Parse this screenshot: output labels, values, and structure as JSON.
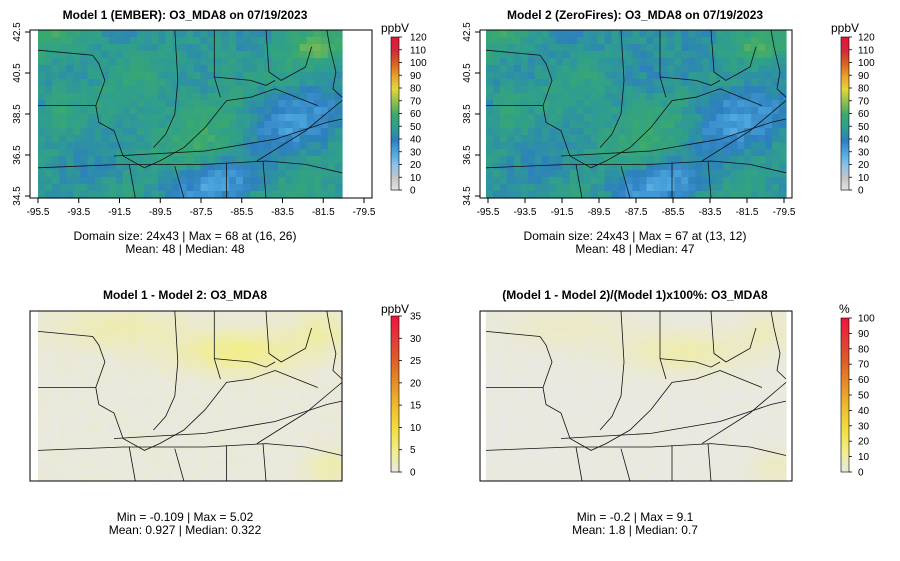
{
  "chart_data": [
    {
      "type": "heatmap",
      "title": "Model 1 (EMBER): O3_MDA8 on 07/19/2023",
      "colorbar": {
        "unit": "ppbV",
        "ticks": [
          "120",
          "110",
          "100",
          "90",
          "80",
          "70",
          "60",
          "50",
          "40",
          "30",
          "20",
          "10",
          "0"
        ],
        "range": [
          0,
          120
        ]
      },
      "x_ticks": [
        "-95.5",
        "-93.5",
        "-91.5",
        "-89.5",
        "-87.5",
        "-85.5",
        "-83.5",
        "-81.5",
        "-79.5"
      ],
      "y_ticks": [
        "42.5",
        "40.5",
        "38.5",
        "36.5",
        "34.5"
      ],
      "xlim": [
        -95.5,
        -79.5
      ],
      "ylim": [
        34.5,
        42.5
      ],
      "stats_line1": "Domain size: 24x43 | Max = 68 at (16, 26)",
      "stats_line2": "Mean: 48 |  Median: 48",
      "field": "model1"
    },
    {
      "type": "heatmap",
      "title": "Model 2 (ZeroFires): O3_MDA8 on 07/19/2023",
      "colorbar": {
        "unit": "ppbV",
        "ticks": [
          "120",
          "110",
          "100",
          "90",
          "80",
          "70",
          "60",
          "50",
          "40",
          "30",
          "20",
          "10",
          "0"
        ],
        "range": [
          0,
          120
        ]
      },
      "x_ticks": [
        "-95.5",
        "-93.5",
        "-91.5",
        "-89.5",
        "-87.5",
        "-85.5",
        "-83.5",
        "-81.5",
        "-79.5"
      ],
      "y_ticks": [
        "42.5",
        "40.5",
        "38.5",
        "36.5",
        "34.5"
      ],
      "xlim": [
        -95.5,
        -79.5
      ],
      "ylim": [
        34.5,
        42.5
      ],
      "stats_line1": "Domain size: 24x43 | Max = 67 at (13, 12)",
      "stats_line2": "Mean: 48 |  Median: 47",
      "field": "model2"
    },
    {
      "type": "heatmap",
      "title": "Model 1 - Model 2: O3_MDA8",
      "colorbar": {
        "unit": "ppbV",
        "ticks": [
          "35",
          "30",
          "25",
          "20",
          "15",
          "10",
          "5",
          "0"
        ],
        "range": [
          0,
          35
        ]
      },
      "stats_line1": "Min = -0.109 | Max = 5.02",
      "stats_line2": "Mean: 0.927 |  Median: 0.322",
      "field": "diff"
    },
    {
      "type": "heatmap",
      "title": "(Model 1 - Model 2)/(Model 1)x100%: O3_MDA8",
      "colorbar": {
        "unit": "%",
        "ticks": [
          "100",
          "90",
          "80",
          "70",
          "60",
          "50",
          "40",
          "30",
          "20",
          "10",
          "0"
        ],
        "range": [
          0,
          100
        ]
      },
      "stats_line1": "Min = -0.2 | Max = 9.1",
      "stats_line2": "Mean: 1.8 |  Median: 0.7",
      "field": "pct"
    }
  ],
  "colors": {
    "ozone_scale": [
      "#e8e8e8",
      "#c6c6c6",
      "#8fc4ea",
      "#4ea8df",
      "#2d7fbf",
      "#2f9e8e",
      "#3aa96e",
      "#8ec04e",
      "#e3d63a",
      "#eba42c",
      "#d9631f",
      "#d02a3b",
      "#e8173a"
    ],
    "diff_scale": [
      "#e8e8e8",
      "#f2ee8a",
      "#f3df3c",
      "#efbc2c",
      "#e8912a",
      "#df6224",
      "#e43a3a",
      "#f0173a"
    ]
  }
}
